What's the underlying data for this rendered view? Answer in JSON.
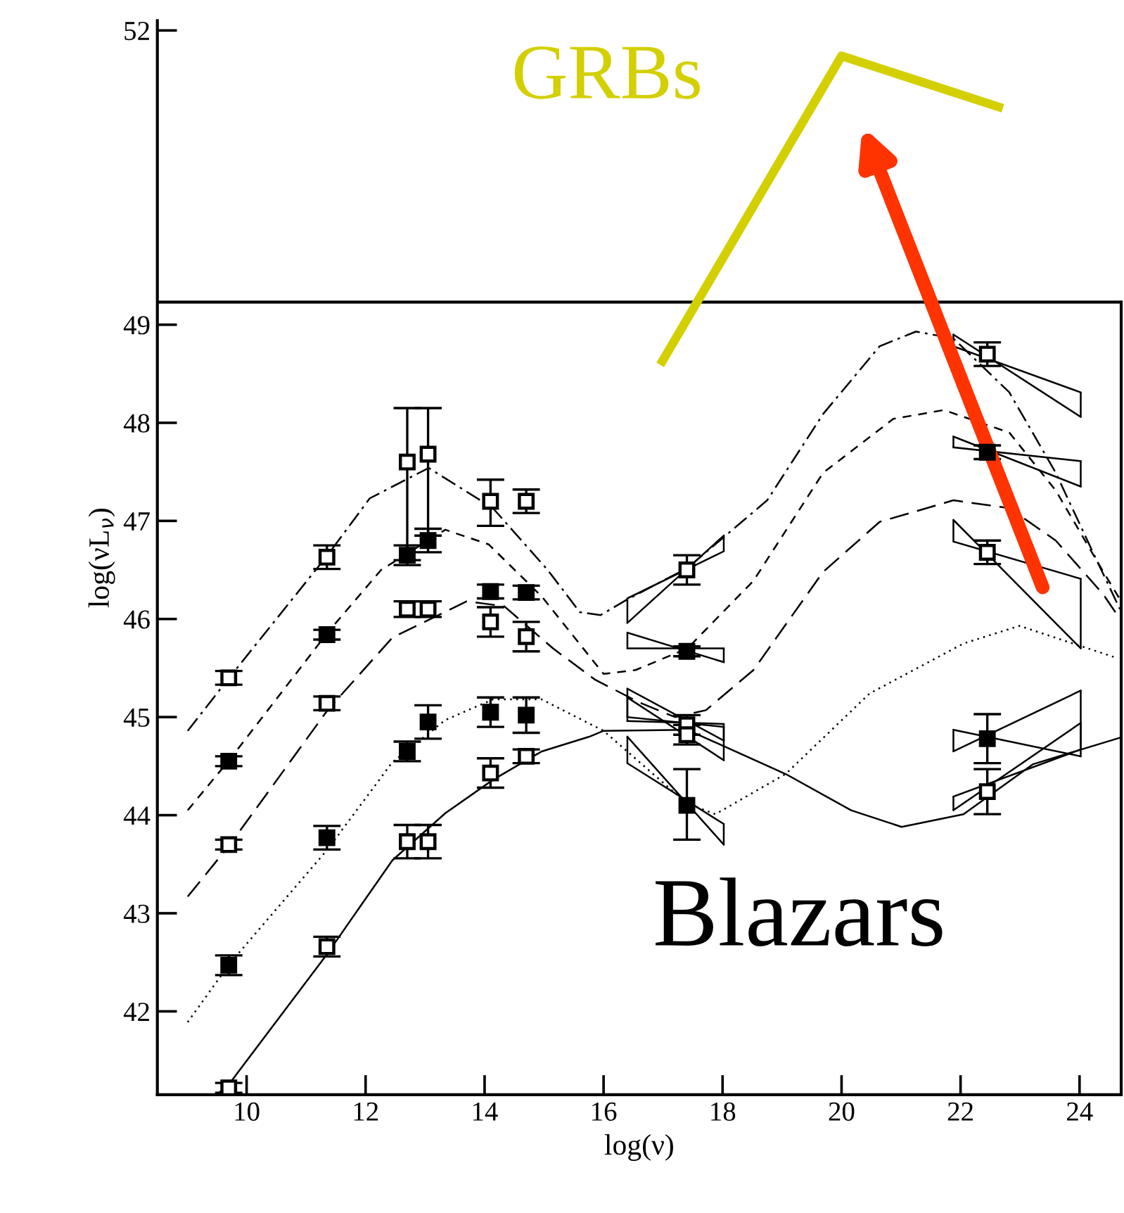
{
  "chart_data": {
    "type": "line",
    "xlabel": "log(ν)",
    "ylabel": "log(νL$_{ν}$)",
    "xlim": [
      8.5,
      24.7
    ],
    "ylim": [
      41.15,
      52.1
    ],
    "xticks": [
      10,
      12,
      14,
      16,
      18,
      20,
      22,
      24
    ],
    "yticks": [
      42,
      43,
      44,
      45,
      46,
      47,
      48,
      49,
      52
    ],
    "ref_lines": [
      {
        "axis": "y",
        "value": 49.23,
        "color": "#000000"
      }
    ],
    "annotations": [
      "Blazars"
    ],
    "series": [
      {
        "color": "#000000",
        "line_style": "dashdot",
        "x": [
          9.01,
          9.72,
          11.36,
          12.07,
          13.06,
          14.14,
          15.06,
          15.6,
          15.95,
          16.4,
          17.41,
          18.75,
          19.69,
          20.64,
          21.25,
          21.88,
          22.82,
          23.6,
          24.24,
          24.68
        ],
        "values": [
          44.86,
          45.41,
          46.65,
          47.23,
          47.54,
          47.13,
          46.5,
          46.07,
          46.04,
          46.2,
          46.52,
          47.21,
          48.09,
          48.78,
          48.93,
          48.86,
          48.31,
          47.49,
          46.66,
          46.1
        ]
      },
      {
        "color": "#000000",
        "line_style": "dashed",
        "x": [
          9.01,
          9.72,
          11.36,
          12.26,
          13.34,
          14.07,
          14.96,
          16.0,
          16.54,
          17.41,
          18.52,
          19.69,
          20.87,
          21.72,
          22.82,
          23.6,
          24.4,
          24.68
        ],
        "values": [
          44.05,
          44.57,
          45.86,
          46.5,
          46.91,
          46.76,
          46.23,
          45.44,
          45.48,
          45.7,
          46.39,
          47.49,
          48.04,
          48.13,
          47.9,
          47.31,
          46.48,
          46.2
        ]
      },
      {
        "color": "#000000",
        "line_style": "longdashed",
        "x": [
          9.01,
          9.72,
          11.36,
          12.45,
          13.7,
          14.33,
          15.15,
          15.86,
          16.6,
          17.2,
          17.72,
          18.52,
          19.69,
          20.64,
          21.88,
          22.82,
          23.6,
          24.4,
          24.68
        ],
        "values": [
          43.17,
          43.7,
          45.07,
          45.81,
          46.18,
          46.13,
          45.7,
          45.38,
          45.15,
          45.0,
          45.07,
          45.48,
          46.48,
          46.99,
          47.21,
          47.13,
          46.8,
          46.25,
          46.0
        ]
      },
      {
        "color": "#000000",
        "line_style": "dotted",
        "x": [
          9.01,
          9.72,
          11.36,
          12.45,
          13.34,
          14.14,
          14.96,
          16.0,
          17.4,
          17.88,
          19.06,
          20.47,
          22.05,
          22.99,
          24.64
        ],
        "values": [
          41.89,
          42.49,
          43.65,
          44.54,
          44.97,
          45.18,
          45.18,
          44.86,
          44.12,
          44.01,
          44.42,
          45.24,
          45.75,
          45.93,
          45.6
        ]
      },
      {
        "color": "#000000",
        "line_style": "solid",
        "x": [
          9.5,
          9.72,
          11.36,
          12.45,
          13.34,
          14.14,
          14.96,
          15.76,
          16.0,
          17.41,
          19.06,
          20.16,
          21.01,
          22.05,
          23.22,
          24.68
        ],
        "values": [
          41.15,
          41.27,
          42.59,
          43.54,
          44.02,
          44.36,
          44.65,
          44.8,
          44.86,
          44.87,
          44.42,
          44.05,
          43.88,
          44.01,
          44.52,
          44.79
        ]
      },
      {
        "color": "#000000",
        "x": [
          16.4,
          18.02
        ],
        "values": [
          46.21,
          46.69
        ],
        "errors": [
          [
            45.96,
            46.21
          ],
          [
            46.69,
            46.85
          ]
        ]
      },
      {
        "color": "#000000",
        "x": [
          16.4,
          18.02
        ],
        "values": [
          45.96,
          46.85
        ]
      },
      {
        "color": "#000000",
        "x": [
          16.4,
          18.02
        ],
        "values": [
          45.86,
          45.56
        ],
        "errors": [
          [
            45.7,
            45.86
          ],
          [
            45.56,
            45.7
          ]
        ]
      },
      {
        "color": "#000000",
        "x": [
          16.4,
          18.02
        ],
        "values": [
          45.7,
          45.7
        ]
      },
      {
        "color": "#000000",
        "x": [
          16.4,
          18.02
        ],
        "values": [
          45.29,
          44.76
        ],
        "errors": [
          [
            44.96,
            45.29
          ],
          [
            44.76,
            44.93
          ]
        ]
      },
      {
        "color": "#000000",
        "x": [
          16.4,
          18.02
        ],
        "values": [
          44.96,
          44.93
        ]
      },
      {
        "color": "#000000",
        "x": [
          16.4,
          18.02
        ],
        "values": [
          44.8,
          43.7
        ],
        "errors": [
          [
            44.53,
            44.8
          ],
          [
            43.7,
            43.91
          ]
        ]
      },
      {
        "color": "#000000",
        "x": [
          16.4,
          18.02
        ],
        "values": [
          44.53,
          43.91
        ]
      },
      {
        "color": "#000000",
        "x": [
          16.4,
          18.02
        ],
        "values": [
          45.2,
          44.56
        ],
        "errors": [
          [
            45.0,
            45.2
          ],
          [
            44.56,
            44.9
          ]
        ]
      },
      {
        "color": "#000000",
        "x": [
          16.4,
          18.02
        ],
        "values": [
          45.0,
          44.9
        ]
      },
      {
        "color": "#000000",
        "x": [
          21.88,
          24.02
        ],
        "values": [
          48.9,
          48.06
        ],
        "errors": [
          [
            48.78,
            48.9
          ],
          [
            48.06,
            48.31
          ]
        ]
      },
      {
        "color": "#000000",
        "x": [
          21.88,
          24.02
        ],
        "values": [
          48.78,
          48.31
        ]
      },
      {
        "color": "#000000",
        "x": [
          21.88,
          24.02
        ],
        "values": [
          47.86,
          47.35
        ],
        "errors": [
          [
            47.75,
            47.86
          ],
          [
            47.35,
            47.61
          ]
        ]
      },
      {
        "color": "#000000",
        "x": [
          21.88,
          24.02
        ],
        "values": [
          47.75,
          47.61
        ]
      },
      {
        "color": "#000000",
        "x": [
          21.88,
          24.02
        ],
        "values": [
          47.01,
          45.7
        ],
        "errors": [
          [
            46.79,
            47.01
          ],
          [
            45.7,
            46.41
          ]
        ]
      },
      {
        "color": "#000000",
        "x": [
          21.88,
          24.02
        ],
        "values": [
          46.79,
          46.41
        ]
      },
      {
        "color": "#000000",
        "x": [
          21.88,
          24.02
        ],
        "values": [
          44.87,
          44.6
        ],
        "errors": [
          [
            44.65,
            44.87
          ],
          [
            44.6,
            45.27
          ]
        ]
      },
      {
        "color": "#000000",
        "x": [
          21.88,
          24.02
        ],
        "values": [
          44.65,
          45.27
        ]
      },
      {
        "color": "#000000",
        "x": [
          21.88,
          24.02
        ],
        "values": [
          44.19,
          44.67
        ],
        "errors": [
          [
            44.05,
            44.19
          ],
          [
            44.67,
            44.94
          ]
        ]
      },
      {
        "color": "#000000",
        "x": [
          21.88,
          24.02
        ],
        "values": [
          44.05,
          44.94
        ]
      },
      {
        "type": "scatter",
        "marker": "square",
        "color": "#ffffff",
        "x": [
          9.7,
          11.35,
          12.7,
          13.05,
          14.1,
          14.7,
          17.4,
          22.45
        ],
        "values": [
          45.4,
          46.63,
          47.6,
          47.68,
          47.2,
          47.2,
          46.5,
          48.7
        ],
        "errors": [
          0.07,
          0.12,
          [
            46.6,
            48.15
          ],
          [
            46.85,
            48.15
          ],
          [
            46.95,
            47.42
          ],
          0.12,
          0.15,
          0.12
        ]
      },
      {
        "type": "scatter",
        "marker": "square",
        "color": "#000000",
        "x": [
          9.7,
          11.35,
          12.7,
          13.05,
          14.1,
          14.7,
          17.4,
          22.45
        ],
        "values": [
          44.55,
          45.84,
          46.65,
          46.8,
          46.28,
          46.27,
          45.67,
          47.7
        ],
        "errors": [
          0.05,
          0.05,
          0.1,
          0.12,
          0.07,
          0.07,
          0.05,
          0.07
        ]
      },
      {
        "type": "scatter",
        "marker": "square",
        "color": "#ffffff",
        "x": [
          9.7,
          11.35,
          12.7,
          13.05,
          14.1,
          14.7,
          17.4,
          22.45
        ],
        "values": [
          43.7,
          45.14,
          46.1,
          46.1,
          45.97,
          45.82,
          44.92,
          46.68
        ],
        "errors": [
          0.05,
          0.07,
          0.08,
          0.08,
          0.15,
          0.15,
          0.1,
          0.12
        ]
      },
      {
        "type": "scatter",
        "marker": "square",
        "color": "#000000",
        "x": [
          9.7,
          11.35,
          12.7,
          13.05,
          14.1,
          14.7,
          17.4,
          22.45
        ],
        "values": [
          42.47,
          43.77,
          44.65,
          44.95,
          45.05,
          45.02,
          44.1,
          44.78
        ],
        "errors": [
          0.1,
          0.12,
          0.1,
          0.17,
          0.15,
          0.18,
          [
            43.75,
            44.47
          ],
          0.25
        ]
      },
      {
        "type": "scatter",
        "marker": "square",
        "color": "#ffffff",
        "x": [
          9.7,
          11.35,
          12.7,
          13.05,
          14.1,
          14.7,
          17.4,
          22.45
        ],
        "values": [
          41.22,
          42.66,
          43.73,
          43.73,
          44.43,
          44.6,
          44.82,
          44.24
        ],
        "errors": [
          0.05,
          0.1,
          0.17,
          0.17,
          0.15,
          0.07,
          0.1,
          0.23
        ]
      },
      {
        "name": "GRBs",
        "color": "#d4cf00",
        "line_style": "solid",
        "x": [
          16.99,
          20.0,
          22.64
        ],
        "values": [
          48.63,
          51.74,
          51.22
        ]
      }
    ]
  }
}
